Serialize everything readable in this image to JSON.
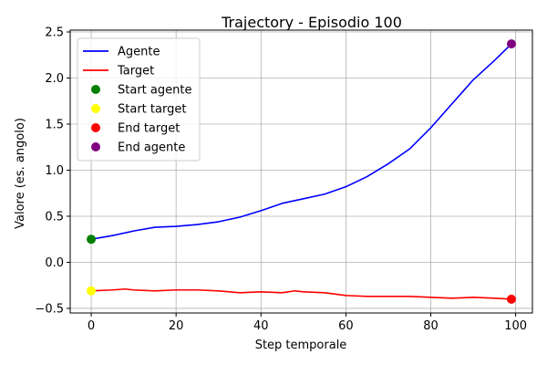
{
  "chart_data": {
    "type": "line",
    "title": "Trajectory - Episodio 100",
    "xlabel": "Step temporale",
    "ylabel": "Valore (es. angolo)",
    "xlim": [
      -4.95,
      103.95
    ],
    "ylim": [
      -0.55,
      2.52
    ],
    "xticks": [
      0,
      20,
      40,
      60,
      80,
      100
    ],
    "yticks": [
      -0.5,
      0.0,
      0.5,
      1.0,
      1.5,
      2.0,
      2.5
    ],
    "xtick_labels": [
      "0",
      "20",
      "40",
      "60",
      "80",
      "100"
    ],
    "ytick_labels": [
      "−0.5",
      "0.0",
      "0.5",
      "1.0",
      "1.5",
      "2.0",
      "2.5"
    ],
    "grid": true,
    "legend_position": "top-left",
    "series": [
      {
        "name": "Agente",
        "color": "#0000ff",
        "points": [
          [
            0,
            0.25
          ],
          [
            5,
            0.29
          ],
          [
            10,
            0.34
          ],
          [
            15,
            0.38
          ],
          [
            20,
            0.39
          ],
          [
            25,
            0.41
          ],
          [
            30,
            0.44
          ],
          [
            35,
            0.49
          ],
          [
            40,
            0.56
          ],
          [
            45,
            0.64
          ],
          [
            50,
            0.69
          ],
          [
            55,
            0.74
          ],
          [
            60,
            0.82
          ],
          [
            65,
            0.93
          ],
          [
            70,
            1.07
          ],
          [
            75,
            1.23
          ],
          [
            80,
            1.46
          ],
          [
            85,
            1.72
          ],
          [
            90,
            1.98
          ],
          [
            95,
            2.19
          ],
          [
            99,
            2.37
          ]
        ]
      },
      {
        "name": "Target",
        "color": "#ff0000",
        "points": [
          [
            0,
            -0.31
          ],
          [
            5,
            -0.3
          ],
          [
            8,
            -0.29
          ],
          [
            10,
            -0.3
          ],
          [
            15,
            -0.31
          ],
          [
            20,
            -0.3
          ],
          [
            25,
            -0.3
          ],
          [
            30,
            -0.31
          ],
          [
            35,
            -0.33
          ],
          [
            40,
            -0.32
          ],
          [
            45,
            -0.33
          ],
          [
            48,
            -0.31
          ],
          [
            50,
            -0.32
          ],
          [
            55,
            -0.33
          ],
          [
            60,
            -0.36
          ],
          [
            65,
            -0.37
          ],
          [
            70,
            -0.37
          ],
          [
            75,
            -0.37
          ],
          [
            80,
            -0.38
          ],
          [
            85,
            -0.39
          ],
          [
            90,
            -0.38
          ],
          [
            95,
            -0.39
          ],
          [
            99,
            -0.4
          ]
        ]
      }
    ],
    "markers": [
      {
        "name": "Start agente",
        "color": "#008000",
        "x": 0,
        "y": 0.25
      },
      {
        "name": "Start target",
        "color": "#ffff00",
        "x": 0,
        "y": -0.31
      },
      {
        "name": "End target",
        "color": "#ff0000",
        "x": 99,
        "y": -0.4
      },
      {
        "name": "End agente",
        "color": "#800080",
        "x": 99,
        "y": 2.37
      }
    ]
  }
}
